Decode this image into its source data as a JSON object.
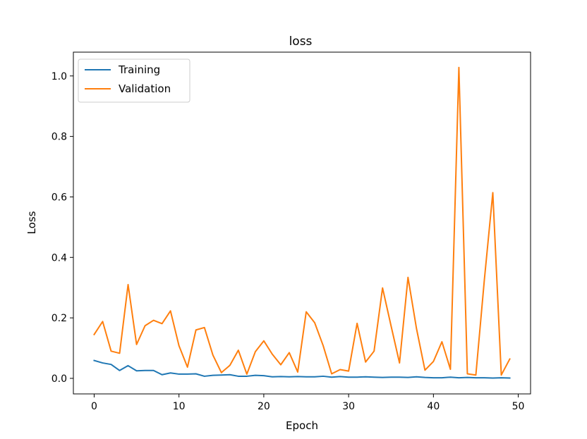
{
  "chart_data": {
    "type": "line",
    "title": "loss",
    "xlabel": "Epoch",
    "ylabel": "Loss",
    "xlim": [
      -2.45,
      51.45
    ],
    "ylim": [
      -0.0514,
      1.0787
    ],
    "xticks": [
      0,
      10,
      20,
      30,
      40,
      50
    ],
    "yticks": [
      0.0,
      0.2,
      0.4,
      0.6,
      0.8,
      1.0
    ],
    "xtick_labels": [
      "0",
      "10",
      "20",
      "30",
      "40",
      "50"
    ],
    "ytick_labels": [
      "0.0",
      "0.2",
      "0.4",
      "0.6",
      "0.8",
      "1.0"
    ],
    "grid": false,
    "legend": {
      "placement": "top-left",
      "entries": [
        "Training",
        "Validation"
      ]
    },
    "x": [
      0,
      1,
      2,
      3,
      4,
      5,
      6,
      7,
      8,
      9,
      10,
      11,
      12,
      13,
      14,
      15,
      16,
      17,
      18,
      19,
      20,
      21,
      22,
      23,
      24,
      25,
      26,
      27,
      28,
      29,
      30,
      31,
      32,
      33,
      34,
      35,
      36,
      37,
      38,
      39,
      40,
      41,
      42,
      43,
      44,
      45,
      46,
      47,
      48,
      49
    ],
    "series": [
      {
        "name": "Training",
        "color": "#1f77b4",
        "values": [
          0.059,
          0.051,
          0.046,
          0.026,
          0.042,
          0.025,
          0.026,
          0.026,
          0.012,
          0.018,
          0.014,
          0.014,
          0.015,
          0.007,
          0.01,
          0.011,
          0.012,
          0.007,
          0.007,
          0.01,
          0.009,
          0.005,
          0.006,
          0.005,
          0.006,
          0.005,
          0.005,
          0.007,
          0.004,
          0.006,
          0.004,
          0.004,
          0.005,
          0.004,
          0.003,
          0.004,
          0.004,
          0.003,
          0.005,
          0.003,
          0.002,
          0.002,
          0.004,
          0.002,
          0.003,
          0.002,
          0.002,
          0.001,
          0.002,
          0.001
        ]
      },
      {
        "name": "Validation",
        "color": "#ff7f0e",
        "values": [
          0.145,
          0.188,
          0.09,
          0.083,
          0.31,
          0.112,
          0.174,
          0.192,
          0.181,
          0.223,
          0.108,
          0.037,
          0.16,
          0.168,
          0.077,
          0.019,
          0.043,
          0.093,
          0.014,
          0.088,
          0.124,
          0.08,
          0.045,
          0.085,
          0.021,
          0.22,
          0.184,
          0.108,
          0.015,
          0.029,
          0.024,
          0.182,
          0.054,
          0.09,
          0.299,
          0.174,
          0.051,
          0.334,
          0.165,
          0.027,
          0.056,
          0.121,
          0.03,
          1.028,
          0.015,
          0.011,
          0.325,
          0.614,
          0.011,
          0.064
        ]
      }
    ]
  }
}
